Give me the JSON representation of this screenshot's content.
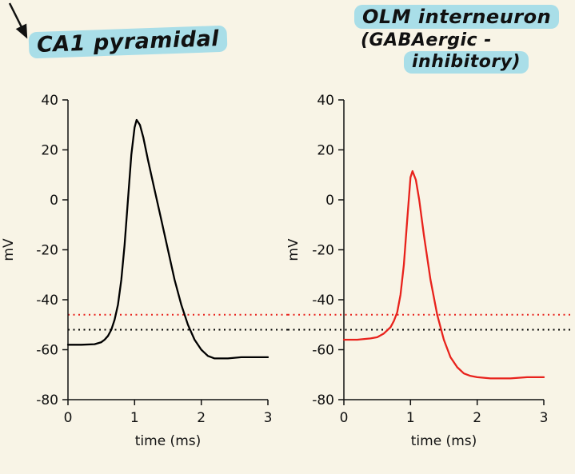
{
  "page": {
    "background": "#f8f4e6"
  },
  "annotations": {
    "arrow_icon": "down-right-arrow",
    "left_label": "CA1 pyramidal",
    "right_label_lines": [
      "OLM interneuron",
      "(GABAergic -",
      "inhibitory)"
    ],
    "highlight_color": "#a9dee8"
  },
  "chart_data": [
    {
      "type": "line",
      "title": "CA1 pyramidal",
      "xlabel": "time (ms)",
      "ylabel": "mV",
      "xlim": [
        0,
        3
      ],
      "ylim": [
        -80,
        40
      ],
      "xticks": [
        0,
        1,
        2,
        3
      ],
      "yticks": [
        40,
        20,
        0,
        -20,
        -40,
        -60,
        -80
      ],
      "line_color": "#000000",
      "grid": false,
      "legend": "none",
      "thresholds": [
        {
          "value": -46,
          "color": "#e8221c",
          "style": "dotted"
        },
        {
          "value": -52,
          "color": "#000000",
          "style": "dotted"
        }
      ],
      "series": [
        {
          "name": "ca1-action-potential",
          "points": [
            [
              0,
              -58
            ],
            [
              0.2,
              -58
            ],
            [
              0.4,
              -57.8
            ],
            [
              0.5,
              -57
            ],
            [
              0.55,
              -56
            ],
            [
              0.6,
              -54.5
            ],
            [
              0.65,
              -52
            ],
            [
              0.7,
              -48
            ],
            [
              0.75,
              -42
            ],
            [
              0.8,
              -32
            ],
            [
              0.85,
              -18
            ],
            [
              0.9,
              0
            ],
            [
              0.95,
              18
            ],
            [
              1.0,
              29
            ],
            [
              1.03,
              32
            ],
            [
              1.08,
              30
            ],
            [
              1.13,
              25
            ],
            [
              1.2,
              16
            ],
            [
              1.3,
              4
            ],
            [
              1.4,
              -8
            ],
            [
              1.5,
              -20
            ],
            [
              1.6,
              -32
            ],
            [
              1.7,
              -42
            ],
            [
              1.8,
              -50
            ],
            [
              1.9,
              -56
            ],
            [
              2.0,
              -60
            ],
            [
              2.1,
              -62.5
            ],
            [
              2.2,
              -63.5
            ],
            [
              2.4,
              -63.5
            ],
            [
              2.6,
              -63
            ],
            [
              2.8,
              -63
            ],
            [
              3.0,
              -63
            ]
          ]
        }
      ]
    },
    {
      "type": "line",
      "title": "OLM interneuron (GABAergic - inhibitory)",
      "xlabel": "time (ms)",
      "ylabel": "mV",
      "xlim": [
        0,
        3
      ],
      "ylim": [
        -80,
        40
      ],
      "xticks": [
        0,
        1,
        2,
        3
      ],
      "yticks": [
        40,
        20,
        0,
        -20,
        -40,
        -60,
        -80
      ],
      "line_color": "#e8221c",
      "grid": false,
      "legend": "none",
      "thresholds": [
        {
          "value": -46,
          "color": "#e8221c",
          "style": "dotted"
        },
        {
          "value": -52,
          "color": "#000000",
          "style": "dotted"
        }
      ],
      "series": [
        {
          "name": "olm-action-potential",
          "points": [
            [
              0,
              -56
            ],
            [
              0.2,
              -56
            ],
            [
              0.4,
              -55.5
            ],
            [
              0.5,
              -55
            ],
            [
              0.6,
              -53.5
            ],
            [
              0.7,
              -51
            ],
            [
              0.75,
              -48.5
            ],
            [
              0.8,
              -45
            ],
            [
              0.85,
              -38
            ],
            [
              0.9,
              -26
            ],
            [
              0.95,
              -8
            ],
            [
              1.0,
              9
            ],
            [
              1.03,
              11.5
            ],
            [
              1.08,
              8
            ],
            [
              1.13,
              0
            ],
            [
              1.2,
              -14
            ],
            [
              1.3,
              -32
            ],
            [
              1.4,
              -46
            ],
            [
              1.5,
              -56
            ],
            [
              1.6,
              -63
            ],
            [
              1.7,
              -67
            ],
            [
              1.8,
              -69.5
            ],
            [
              1.9,
              -70.5
            ],
            [
              2.0,
              -71
            ],
            [
              2.2,
              -71.5
            ],
            [
              2.5,
              -71.5
            ],
            [
              2.75,
              -71
            ],
            [
              3.0,
              -71
            ]
          ]
        }
      ]
    }
  ]
}
